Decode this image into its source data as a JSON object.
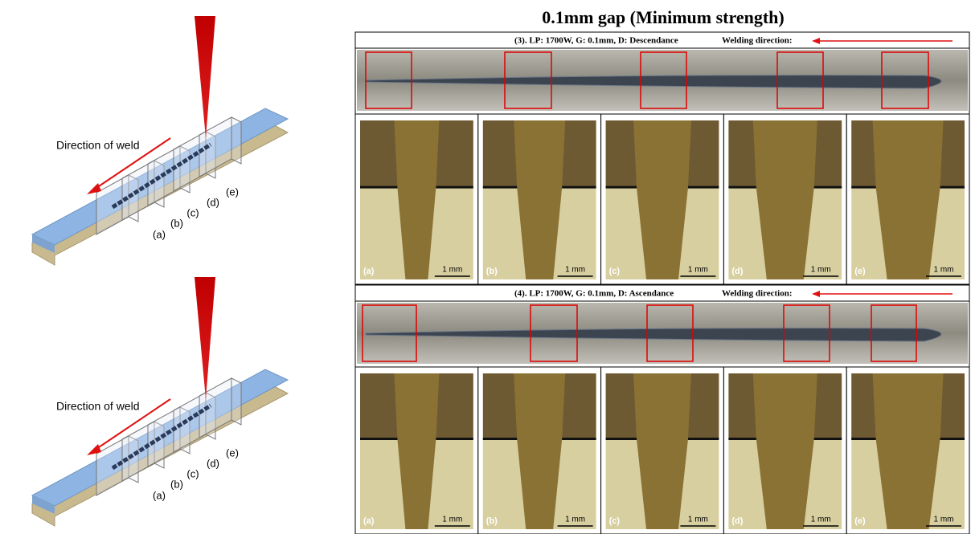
{
  "title": "0.1mm gap (Minimum strength)",
  "diagrams": [
    {
      "direction_label": "Direction of weld",
      "slice_labels": [
        "(a)",
        "(b)",
        "(c)",
        "(d)",
        "(e)"
      ]
    },
    {
      "direction_label": "Direction of weld",
      "slice_labels": [
        "(a)",
        "(b)",
        "(c)",
        "(d)",
        "(e)"
      ]
    }
  ],
  "panels": [
    {
      "header": "(3). LP: 1700W, G: 0.1mm, D: Descendance",
      "direction_label": "Welding direction:",
      "sections": [
        {
          "label": "(a)",
          "scale": "1 mm"
        },
        {
          "label": "(b)",
          "scale": "1 mm"
        },
        {
          "label": "(c)",
          "scale": "1 mm"
        },
        {
          "label": "(d)",
          "scale": "1 mm"
        },
        {
          "label": "(e)",
          "scale": "1 mm"
        }
      ]
    },
    {
      "header": "(4). LP: 1700W, G: 0.1mm, D: Ascendance",
      "direction_label": "Welding direction:",
      "sections": [
        {
          "label": "(a)",
          "scale": "1 mm"
        },
        {
          "label": "(b)",
          "scale": "1 mm"
        },
        {
          "label": "(c)",
          "scale": "1 mm"
        },
        {
          "label": "(d)",
          "scale": "1 mm"
        },
        {
          "label": "(e)",
          "scale": "1 mm"
        }
      ]
    }
  ]
}
